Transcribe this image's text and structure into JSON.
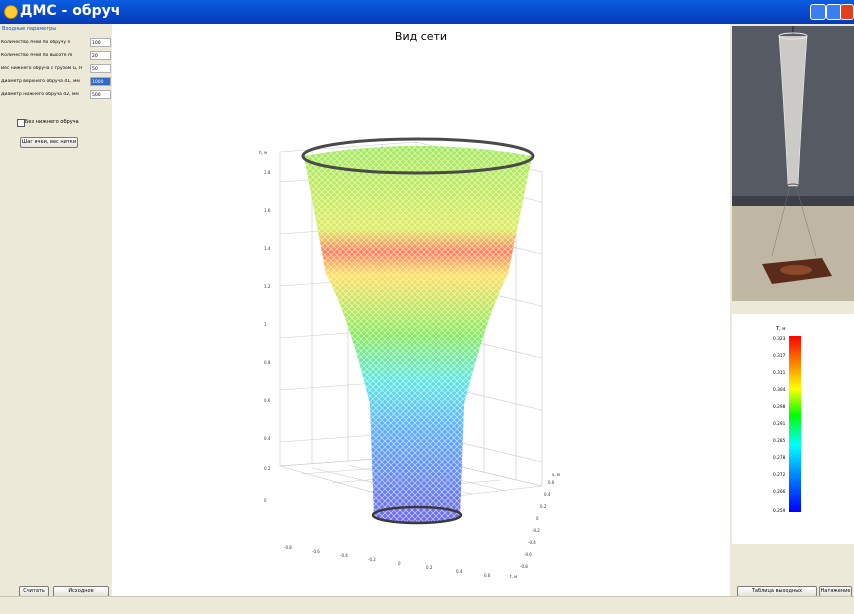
{
  "window": {
    "title": "ДМС - обруч"
  },
  "left": {
    "group_label": "Входные параметры",
    "params": [
      {
        "label": "Количество ячей по обручу n",
        "value": "100"
      },
      {
        "label": "Количество ячей по высоте m",
        "value": "20"
      },
      {
        "label": "Вес нижнего обруча с грузом G, Н",
        "value": "50"
      },
      {
        "label": "Диаметр верхнего обруча d1, мм",
        "value": "1000"
      },
      {
        "label": "Диаметр нижнего обруча d2, мм",
        "value": "500"
      }
    ],
    "checkbox_label": "Без нижнего обруча",
    "step_button": "Шаг ячеи, вес нитки",
    "calc_button": "Считать",
    "initial_button": "Исходное положение"
  },
  "main": {
    "title": "Вид сети",
    "z_axis_label": "h, м",
    "y_axis_label": "x, м",
    "x_axis_label": "t, м",
    "z_ticks": [
      "1.8",
      "1.6",
      "1.4",
      "1.2",
      "1",
      "0.8",
      "0.6",
      "0.4",
      "0.2",
      "0"
    ],
    "x_ticks": [
      "0.6",
      "0.4",
      "0.2",
      "0",
      "-0.2",
      "-0.4",
      "-0.6",
      "-0.8"
    ],
    "y_ticks": [
      "0.6",
      "0.4",
      "0.2",
      "0",
      "-0.2",
      "-0.4",
      "-0.6",
      "-0.8"
    ]
  },
  "right": {
    "colorbar_label": "T, н",
    "colorbar_ticks": [
      "0.323",
      "0.317",
      "0.311",
      "0.304",
      "0.298",
      "0.291",
      "0.285",
      "0.278",
      "0.272",
      "0.266",
      "0.259"
    ],
    "table_button": "Таблица выходных параметров",
    "tension_button": "Натяжение"
  },
  "colors": {
    "titlebar": "#0646c8",
    "selected": "#3468c8",
    "panel": "#ece9d8"
  },
  "icons": {
    "app": "app-icon",
    "minimize": "minimize-icon",
    "maximize": "maximize-icon",
    "close": "close-icon"
  }
}
